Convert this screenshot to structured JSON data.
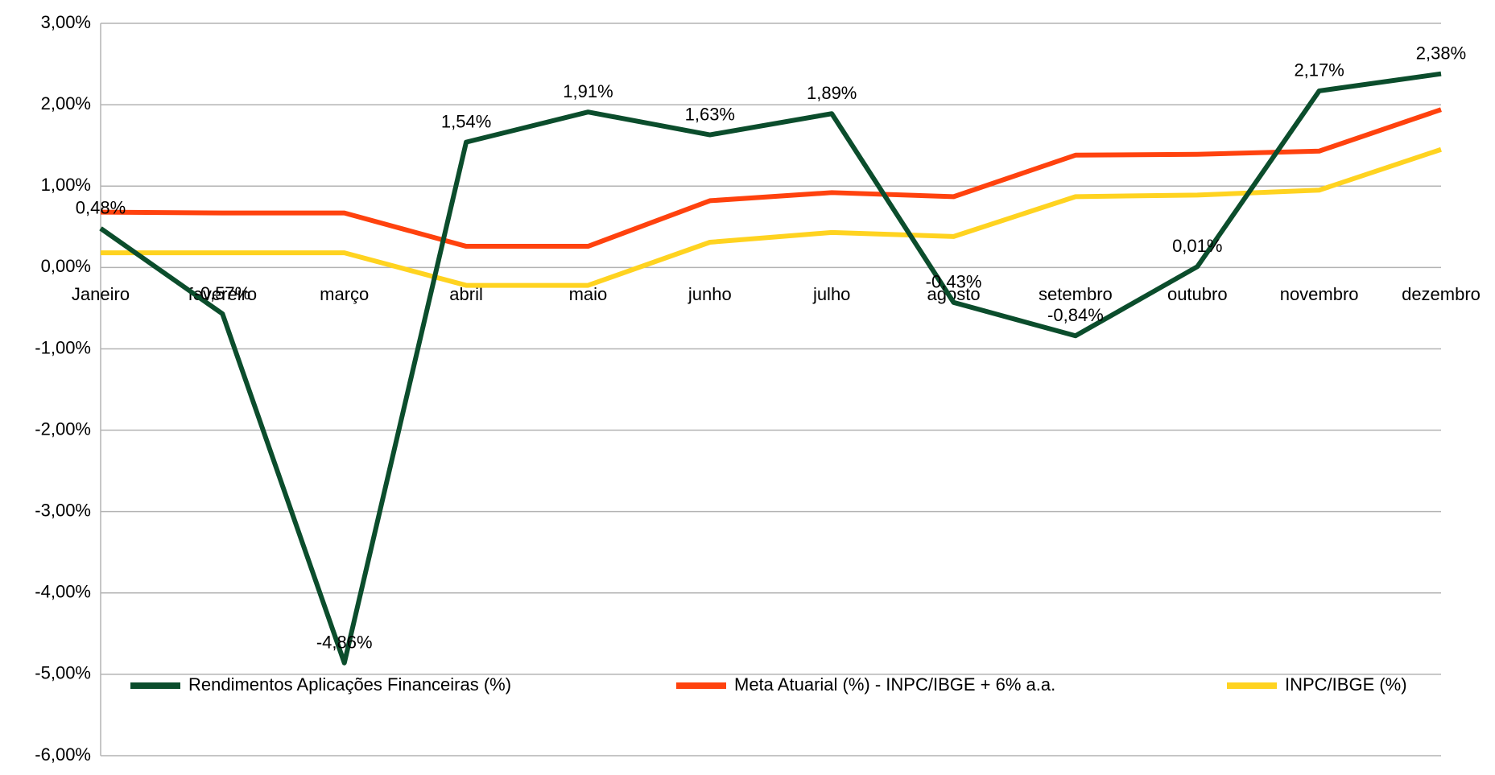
{
  "chart_data": {
    "type": "line",
    "categories": [
      "Janeiro",
      "fevereiro",
      "março",
      "abril",
      "maio",
      "junho",
      "julho",
      "agosto",
      "setembro",
      "outubro",
      "novembro",
      "dezembro"
    ],
    "series": [
      {
        "name": "Rendimentos Aplicações Financeiras (%)",
        "color": "#0b4d2c",
        "values": [
          0.48,
          -0.57,
          -4.86,
          1.54,
          1.91,
          1.63,
          1.89,
          -0.43,
          -0.84,
          0.01,
          2.17,
          2.38
        ],
        "value_labels": [
          "0,48%",
          "-0,57%",
          "-4,86%",
          "1,54%",
          "1,91%",
          "1,63%",
          "1,89%",
          "-0,43%",
          "-0,84%",
          "0,01%",
          "2,17%",
          "2,38%"
        ]
      },
      {
        "name": "Meta Atuarial (%) - INPC/IBGE + 6% a.a.",
        "color": "#ff420e",
        "values": [
          0.68,
          0.67,
          0.67,
          0.26,
          0.26,
          0.82,
          0.92,
          0.87,
          1.38,
          1.39,
          1.43,
          1.94
        ]
      },
      {
        "name": "INPC/IBGE (%)",
        "color": "#ffd320",
        "values": [
          0.18,
          0.18,
          0.18,
          -0.22,
          -0.22,
          0.31,
          0.43,
          0.38,
          0.87,
          0.89,
          0.95,
          1.45
        ]
      }
    ],
    "ylim": [
      -6,
      3
    ],
    "yticks": [
      {
        "value": -6,
        "label": "-6,00%"
      },
      {
        "value": -5,
        "label": "-5,00%"
      },
      {
        "value": -4,
        "label": "-4,00%"
      },
      {
        "value": -3,
        "label": "-3,00%"
      },
      {
        "value": -2,
        "label": "-2,00%"
      },
      {
        "value": -1,
        "label": "-1,00%"
      },
      {
        "value": 0,
        "label": "0,00%"
      },
      {
        "value": 1,
        "label": "1,00%"
      },
      {
        "value": 2,
        "label": "2,00%"
      },
      {
        "value": 3,
        "label": "3,00%"
      }
    ],
    "grid": true,
    "legend": "bottom"
  }
}
